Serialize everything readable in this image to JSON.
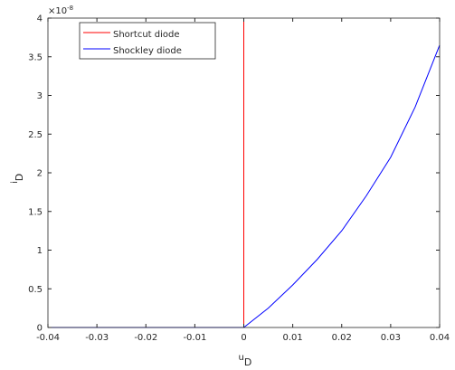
{
  "chart_data": {
    "type": "line",
    "xlabel": "u",
    "xlabel_sub": "D",
    "ylabel": "i",
    "ylabel_sub": "D",
    "y_multiplier": "×10",
    "y_multiplier_exp": "-8",
    "xlim": [
      -0.04,
      0.04
    ],
    "xticks": [
      -0.04,
      -0.03,
      -0.02,
      -0.01,
      0,
      0.01,
      0.02,
      0.03,
      0.04
    ],
    "ylim": [
      0,
      4
    ],
    "yticks": [
      0,
      0.5,
      1,
      1.5,
      2,
      2.5,
      3,
      3.5,
      4
    ],
    "legend": "upper-left",
    "series": [
      {
        "name": "Shortcut diode",
        "color": "#ff0000",
        "x": [
          -0.04,
          0,
          0
        ],
        "values": [
          0,
          0,
          4
        ]
      },
      {
        "name": "Shockley diode",
        "color": "#0000ff",
        "x": [
          -0.04,
          -0.02,
          0,
          0.005,
          0.01,
          0.015,
          0.02,
          0.025,
          0.03,
          0.035,
          0.04
        ],
        "values": [
          0,
          0,
          0,
          0.25,
          0.55,
          0.88,
          1.25,
          1.7,
          2.2,
          2.85,
          3.65
        ]
      }
    ]
  }
}
